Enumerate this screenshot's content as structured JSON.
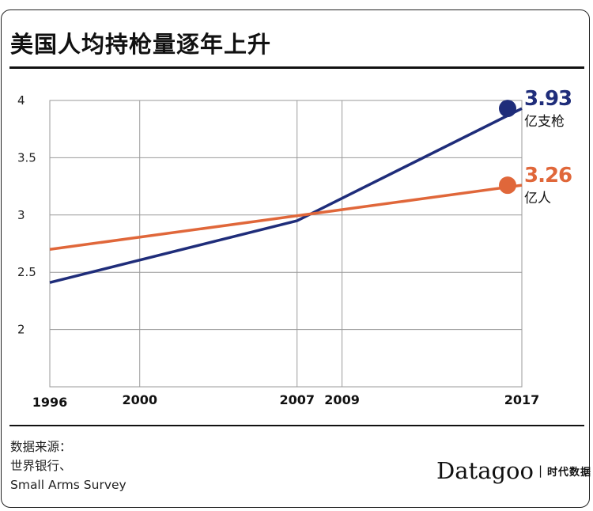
{
  "header": {
    "title": "美国人均持枪量逐年上升"
  },
  "chart_data": {
    "type": "line",
    "title": "美国人均持枪量逐年上升",
    "xlabel": "",
    "ylabel": "",
    "x_ticks": [
      1996,
      2000,
      2007,
      2009,
      2017
    ],
    "y_ticks": [
      "2",
      "2.5",
      "3",
      "3.5",
      "4"
    ],
    "xlim": [
      1996,
      2017
    ],
    "ylim": [
      1.5,
      4
    ],
    "grid": true,
    "series": [
      {
        "name": "亿支枪",
        "color": "#1f2d7a",
        "points": [
          [
            1996,
            2.41
          ],
          [
            2007,
            2.95
          ],
          [
            2017,
            3.93
          ]
        ],
        "end_value": "3.93",
        "end_unit": "亿支枪"
      },
      {
        "name": "亿人",
        "color": "#e0673a",
        "points": [
          [
            1996,
            2.7
          ],
          [
            2017,
            3.26
          ]
        ],
        "end_value": "3.26",
        "end_unit": "亿人"
      }
    ]
  },
  "source": {
    "label": "数据来源：",
    "line1": "世界银行、",
    "line2": "Small Arms Survey"
  },
  "brand": {
    "main": "Datagoo",
    "sep": "|",
    "sub": "时代数据"
  }
}
